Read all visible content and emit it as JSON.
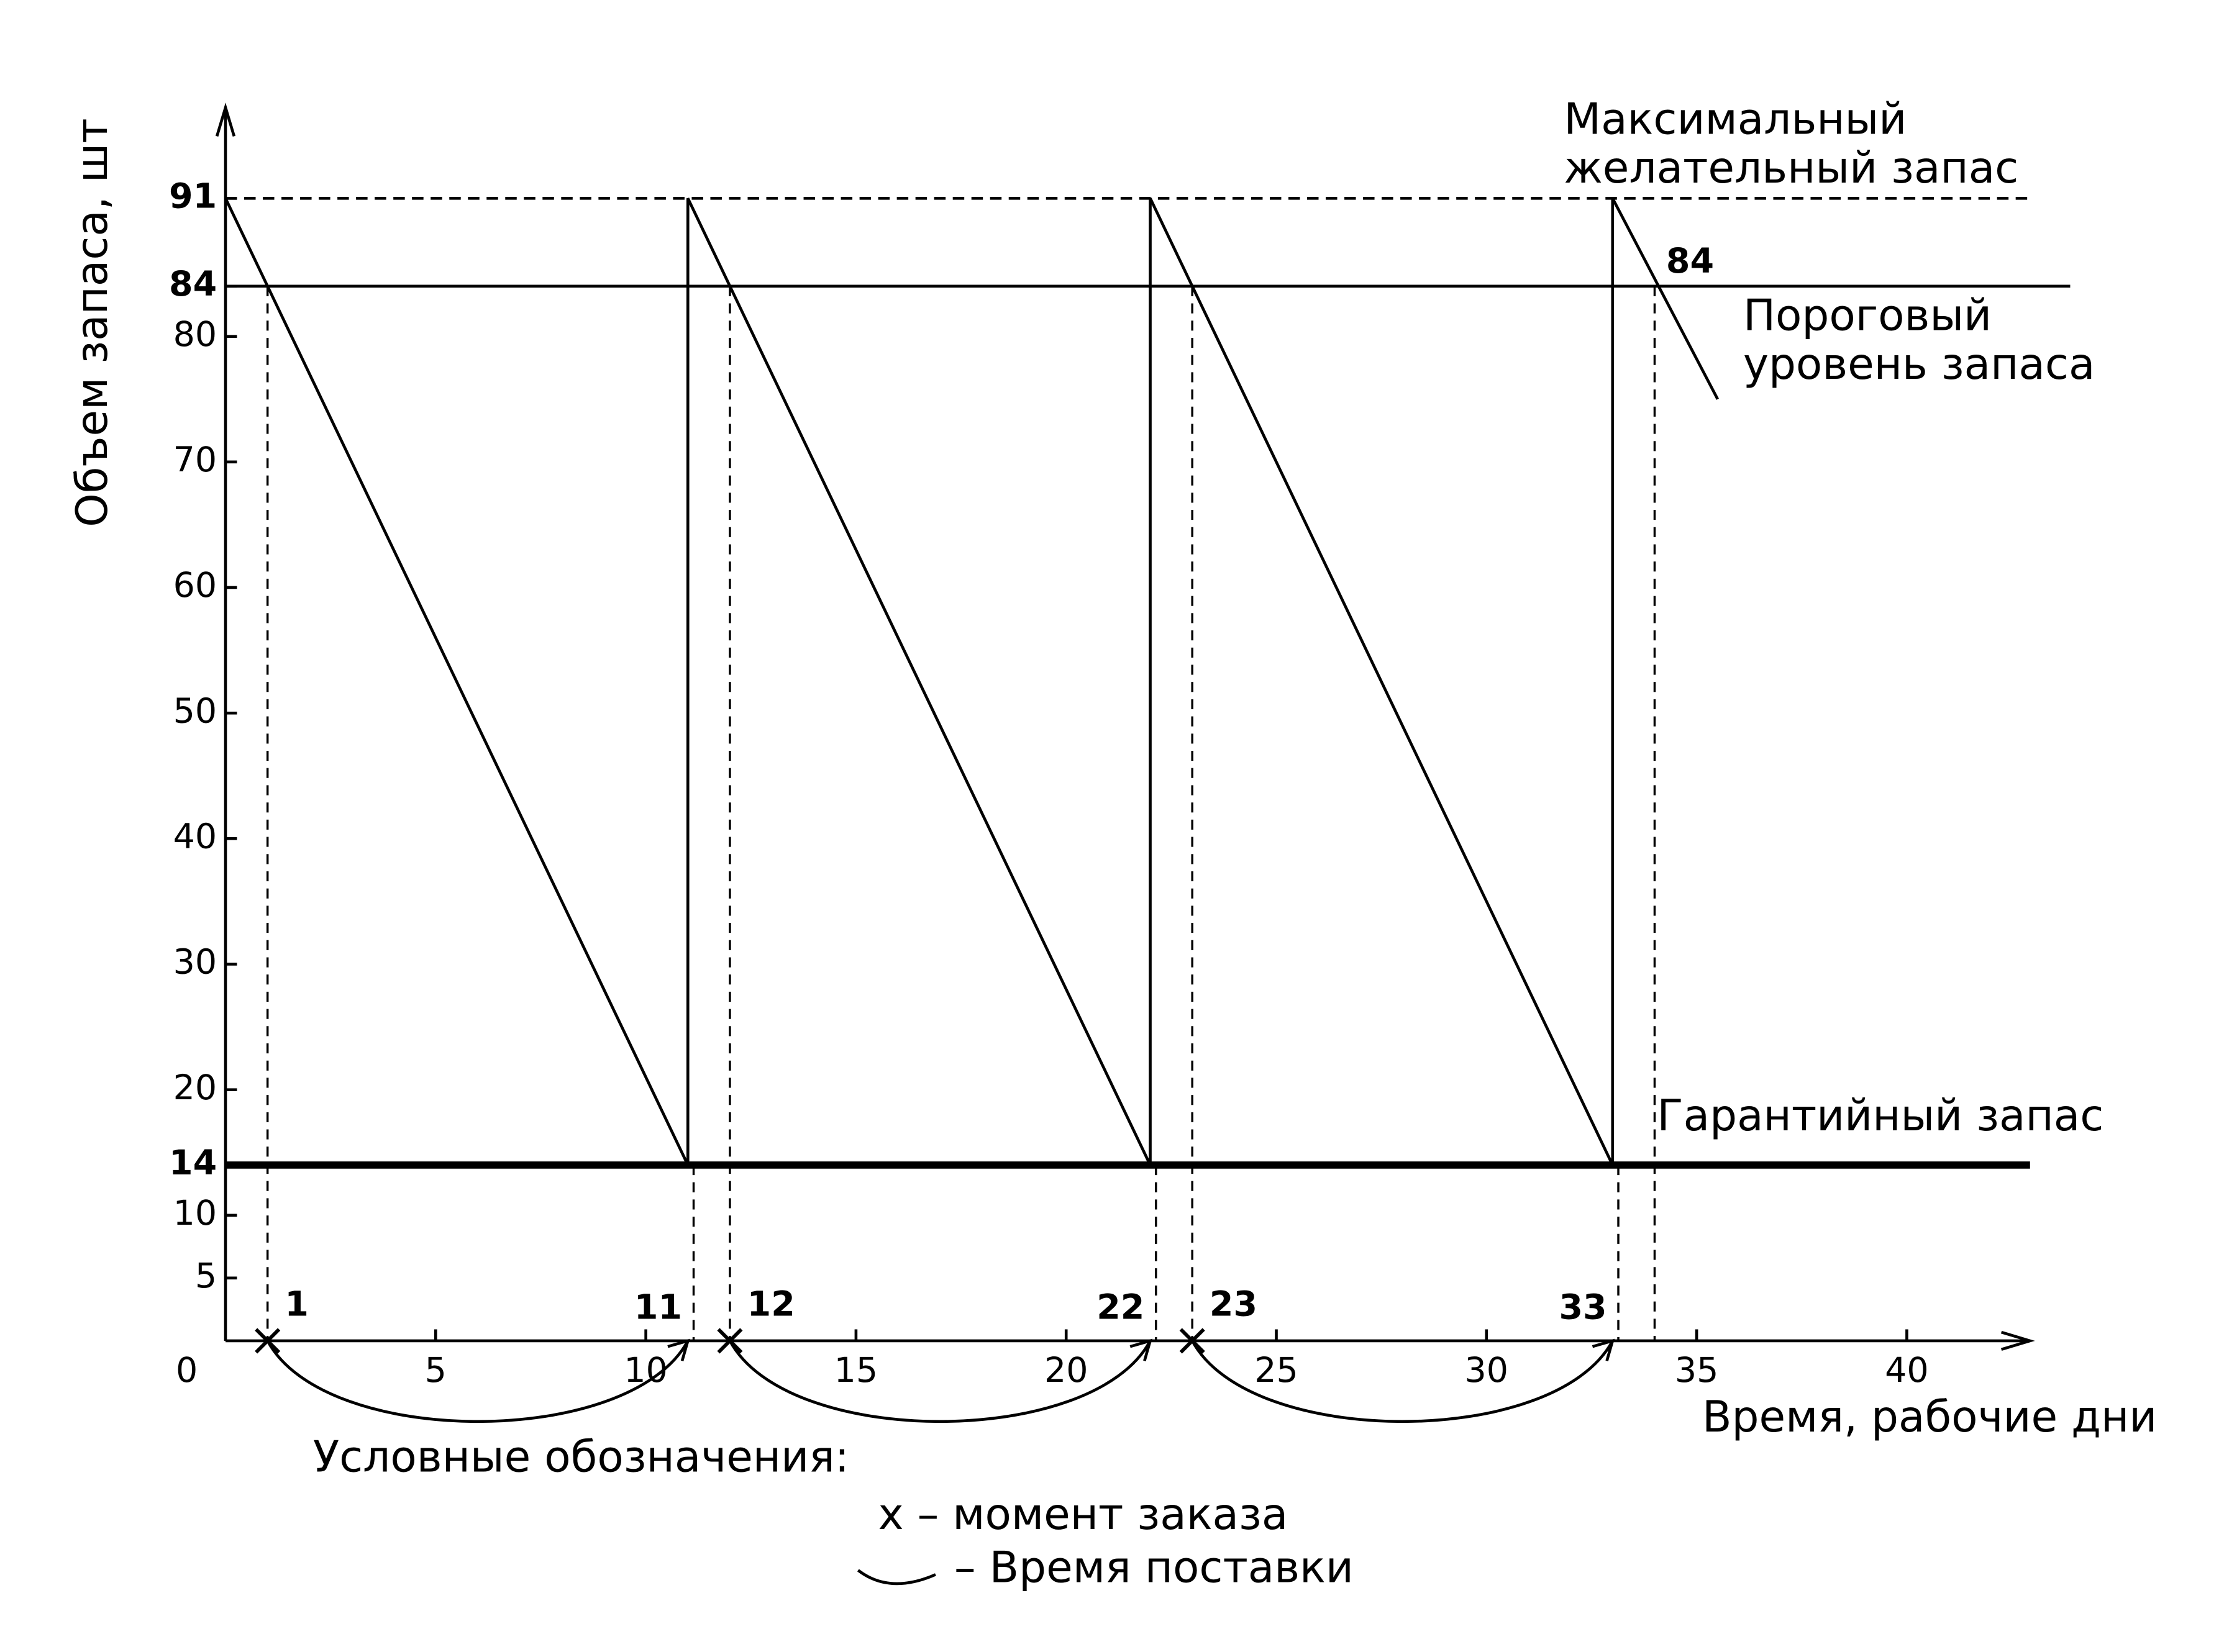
{
  "chart_data": {
    "type": "line",
    "y_label": "Объем запаса, шт",
    "x_label": "Время, рабочие дни",
    "xlim": [
      0,
      43
    ],
    "ylim": [
      0,
      98
    ],
    "xticks": [
      0,
      5,
      10,
      15,
      20,
      25,
      30,
      35,
      40
    ],
    "yticks": [
      5,
      10,
      14,
      20,
      30,
      40,
      50,
      60,
      70,
      80,
      84,
      91
    ],
    "series": [
      {
        "x": [
          0,
          11,
          11,
          22,
          22,
          33,
          33,
          35.5
        ],
        "values": [
          91,
          14,
          91,
          14,
          91,
          14,
          91,
          75
        ],
        "color": "#000000"
      }
    ],
    "reference_lines": [
      {
        "value": 91,
        "style": "dashed",
        "label_lines": [
          "Максимальный",
          "желательный запас"
        ]
      },
      {
        "value": 84,
        "style": "solid",
        "label_lines": [
          "Пороговый",
          "уровень запаса"
        ]
      },
      {
        "value": 14,
        "style": "thick",
        "label_lines": [
          "Гарантийный запас"
        ]
      }
    ],
    "deliveries": [
      {
        "order": 1,
        "arrival": 11
      },
      {
        "order": 12,
        "arrival": 22
      },
      {
        "order": 23,
        "arrival": 33
      }
    ],
    "next_order": 34,
    "crossing_label": 84,
    "legend": {
      "title": "Условные обозначения:",
      "order_item": "x – момент заказа",
      "delivery_item": "– Время поставки"
    }
  }
}
